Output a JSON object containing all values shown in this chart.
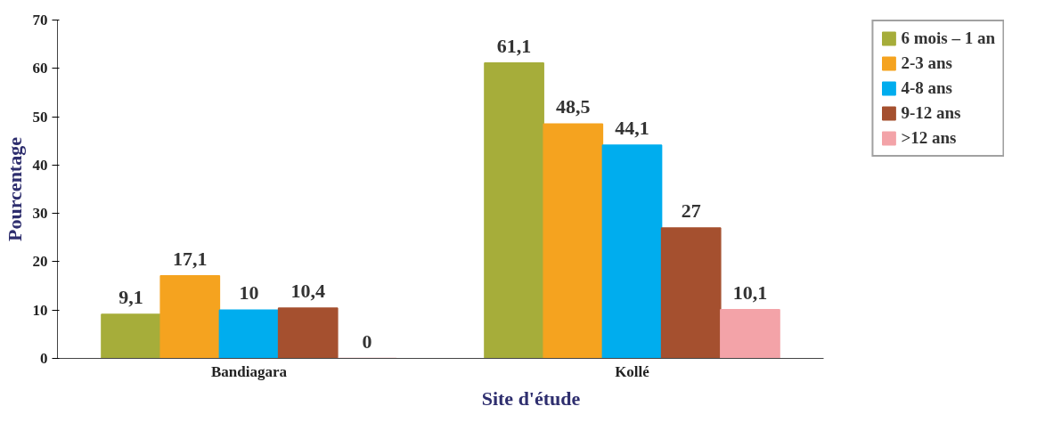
{
  "chart_data": {
    "type": "bar",
    "xlabel": "Site d'étude",
    "ylabel": "Pourcentage",
    "categories": [
      "Bandiagara",
      "Kollé"
    ],
    "series": [
      {
        "name": "6 mois – 1 an",
        "color": "#a6ad3a",
        "values": [
          9.1,
          61.1
        ],
        "value_labels": [
          "9,1",
          "61,1"
        ]
      },
      {
        "name": "2-3 ans",
        "color": "#f5a31f",
        "values": [
          17.1,
          48.5
        ],
        "value_labels": [
          "17,1",
          "48,5"
        ]
      },
      {
        "name": "4-8 ans",
        "color": "#00adee",
        "values": [
          10,
          44.1
        ],
        "value_labels": [
          "10",
          "44,1"
        ]
      },
      {
        "name": "9-12 ans",
        "color": "#a5502f",
        "values": [
          10.4,
          27
        ],
        "value_labels": [
          "10,4",
          "27"
        ]
      },
      {
        "name": ">12 ans",
        "color": "#f3a3a8",
        "values": [
          0,
          10.1
        ],
        "value_labels": [
          "0",
          "10,1"
        ]
      }
    ],
    "ylim": [
      0,
      70
    ],
    "yticks": [
      0,
      10,
      20,
      30,
      40,
      50,
      60,
      70
    ],
    "grid": false,
    "legend": "top right"
  }
}
